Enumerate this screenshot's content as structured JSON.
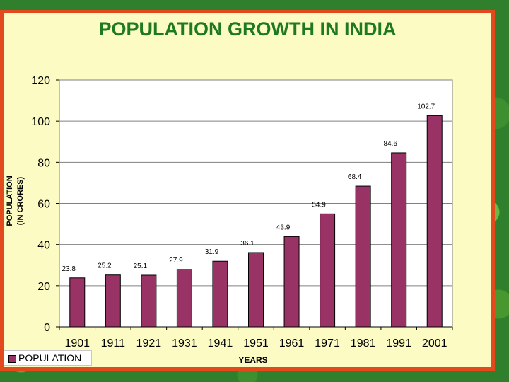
{
  "slide": {
    "title": "POPULATION GROWTH IN INDIA"
  },
  "colors": {
    "bar_fill": "#993366",
    "plot_background": "#ffffff",
    "frame_border": "#e24a1e",
    "slide_background": "#fbfbc3",
    "title_color": "#1f7a1f"
  },
  "chart_data": {
    "type": "bar",
    "title": "POPULATION GROWTH IN INDIA",
    "categories": [
      "1901",
      "1911",
      "1921",
      "1931",
      "1941",
      "1951",
      "1961",
      "1971",
      "1981",
      "1991",
      "2001"
    ],
    "series": [
      {
        "name": "POPULATION",
        "values": [
          23.8,
          25.2,
          25.1,
          27.9,
          31.9,
          36.1,
          43.9,
          54.9,
          68.4,
          84.6,
          102.7
        ],
        "labels": [
          "23.8",
          "25.2",
          "25.1",
          "27.9",
          "31.9",
          "36.1",
          "43.9",
          "54.9",
          "68.4",
          "84.6",
          "102.7"
        ]
      }
    ],
    "xlabel": "YEARS",
    "ylabel_lines": [
      "POPULATION",
      "(IN CRORES)"
    ],
    "ylim": [
      0,
      120
    ],
    "yticks": [
      "0",
      "20",
      "40",
      "60",
      "80",
      "100",
      "120"
    ],
    "grid": true,
    "legend_position": "bottom-left"
  }
}
